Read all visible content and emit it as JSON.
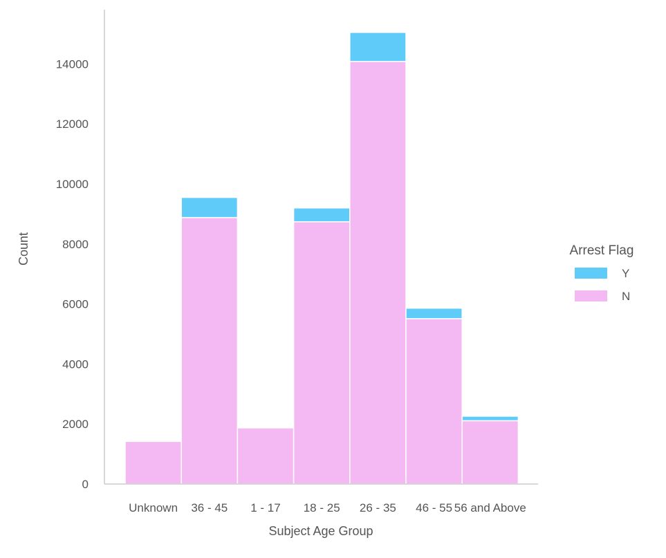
{
  "chart_data": {
    "type": "bar",
    "stacked": true,
    "xlabel": "Subject Age Group",
    "ylabel": "Count",
    "categories": [
      "Unknown",
      "36 - 45",
      "1 - 17",
      "18 - 25",
      "26 - 35",
      "46 - 55",
      "56 and Above"
    ],
    "series": [
      {
        "name": "N",
        "values": [
          1420,
          8880,
          1870,
          8740,
          14080,
          5510,
          2110
        ]
      },
      {
        "name": "Y",
        "values": [
          0,
          670,
          0,
          460,
          970,
          350,
          150
        ]
      }
    ],
    "ylim": [
      0,
      15000
    ],
    "yticks": [
      0,
      2000,
      4000,
      6000,
      8000,
      10000,
      12000,
      14000
    ],
    "grid": false,
    "legend": {
      "title": "Arrest Flag",
      "placement": "right",
      "entries": [
        "Y",
        "N"
      ]
    },
    "colors": {
      "Y": "#5ecbf9",
      "N": "#f4b8f3"
    }
  }
}
